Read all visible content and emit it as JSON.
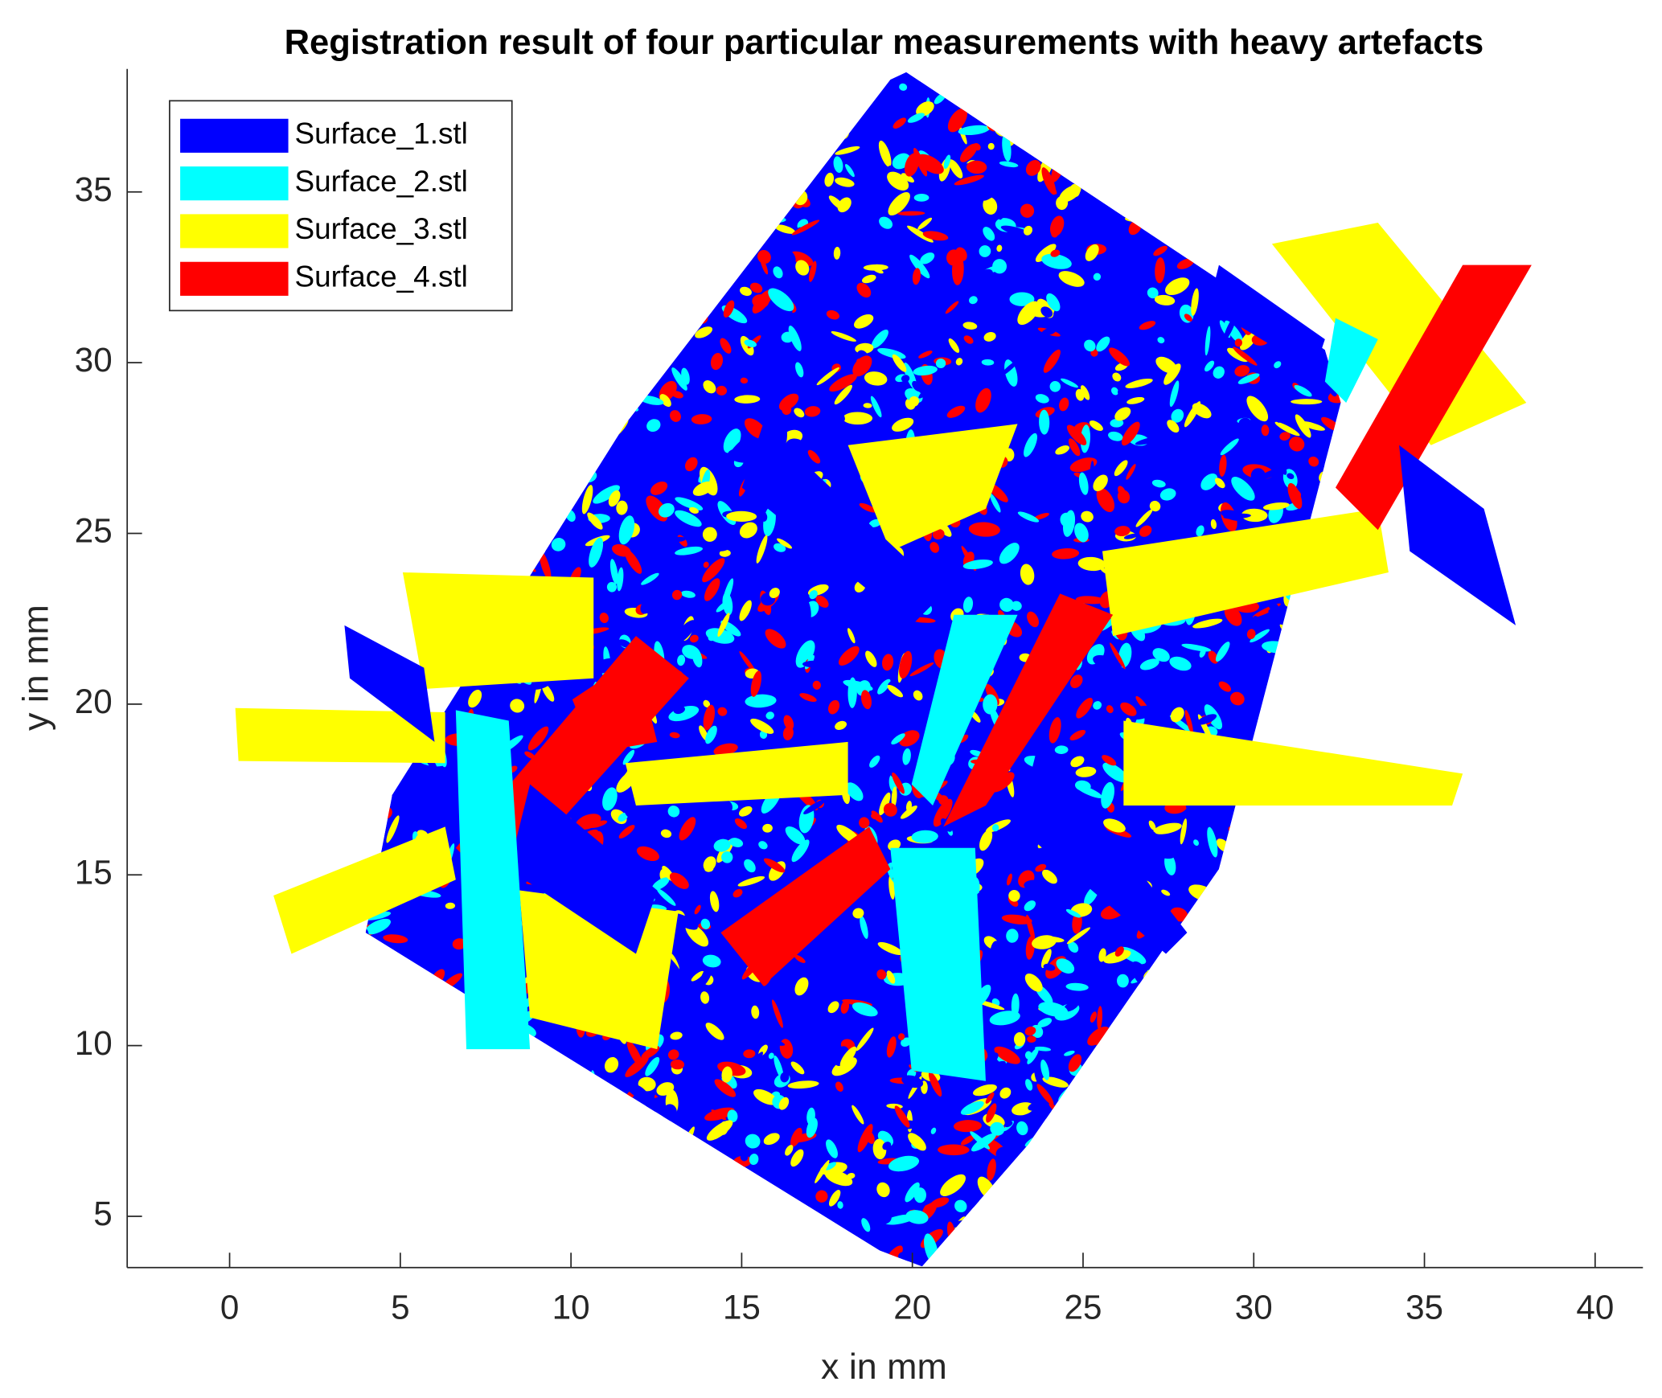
{
  "chart_data": {
    "type": "surface",
    "title": "Registration result of four particular measurements with heavy artefacts",
    "xlabel": "x in mm",
    "ylabel": "y in mm",
    "xlim": [
      -3,
      41.4
    ],
    "ylim": [
      3.5,
      38.6
    ],
    "xticks": [
      0,
      5,
      10,
      15,
      20,
      25,
      30,
      35,
      40
    ],
    "yticks": [
      5,
      10,
      15,
      20,
      25,
      30,
      35
    ],
    "legend": "northwest",
    "series": [
      {
        "name": "Surface_1.stl",
        "color": "#0000ff"
      },
      {
        "name": "Surface_2.stl",
        "color": "#00ffff"
      },
      {
        "name": "Surface_3.stl",
        "color": "#ffff00"
      },
      {
        "name": "Surface_4.stl",
        "color": "#ff0000"
      }
    ]
  }
}
